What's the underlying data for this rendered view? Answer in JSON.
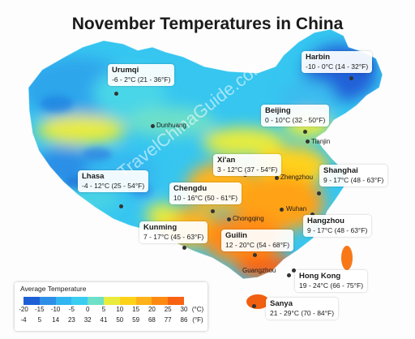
{
  "title": "November Temperatures in China",
  "watermark": "TravelChinaGuide.com",
  "cities": [
    {
      "name": "Urumqi",
      "range": "-6 - 2°C (21 - 36°F)"
    },
    {
      "name": "Harbin",
      "range": "-10 - 0°C (14 - 32°F)"
    },
    {
      "name": "Beijing",
      "range": "0 - 10°C (32 - 50°F)"
    },
    {
      "name": "Xi'an",
      "range": "3 - 12°C (37 - 54°F)"
    },
    {
      "name": "Lhasa",
      "range": "-4 - 12°C (25 - 54°F)"
    },
    {
      "name": "Chengdu",
      "range": "10 - 16°C (50 - 61°F)"
    },
    {
      "name": "Shanghai",
      "range": "9 - 17°C (48 - 63°F)"
    },
    {
      "name": "Kunming",
      "range": "7 - 17°C (45 - 63°F)"
    },
    {
      "name": "Guilin",
      "range": "12 - 20°C (54 - 68°F)"
    },
    {
      "name": "Hangzhou",
      "range": "9 - 17°C (48 - 63°F)"
    },
    {
      "name": "Hong Kong",
      "range": "19 - 24°C (66 - 75°F)"
    },
    {
      "name": "Sanya",
      "range": "21 - 29°C (70 - 84°F)"
    }
  ],
  "minor_cities": [
    "Dunhuang",
    "Tianjin",
    "Zhengzhou",
    "Wuhan",
    "Chongqing",
    "Guangzhou"
  ],
  "legend": {
    "title": "Average Temperature",
    "celsius": [
      "-20",
      "-15",
      "-10",
      "-5",
      "0",
      "5",
      "10",
      "15",
      "20",
      "25",
      "30"
    ],
    "fahrenheit": [
      "-4",
      "5",
      "14",
      "23",
      "32",
      "41",
      "50",
      "59",
      "68",
      "77",
      "86"
    ],
    "unit_c": "(°C)",
    "unit_f": "(°F)",
    "colors": [
      "#1f5fd6",
      "#2e8fe8",
      "#31b6f2",
      "#39cdf2",
      "#6ee0c8",
      "#e8ec3c",
      "#ffd21a",
      "#ffb21a",
      "#ff8a12",
      "#f86212"
    ]
  }
}
